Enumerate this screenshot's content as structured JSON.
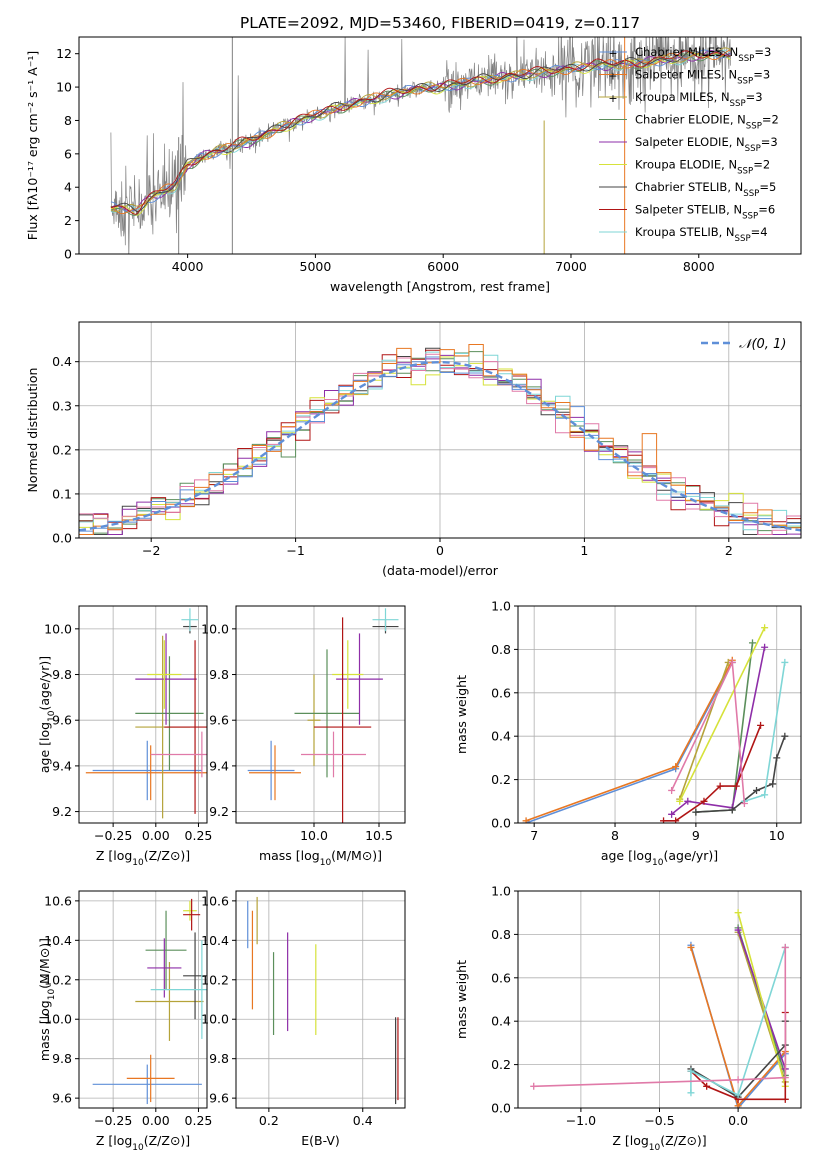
{
  "figure_title": "PLATE=2092, MJD=53460, FIBERID=0419, z=0.117",
  "colors": [
    "#5f8fd8",
    "#e87722",
    "#b5a33a",
    "#5b8f5b",
    "#8e2ea8",
    "#d6e23a",
    "#444444",
    "#b01515",
    "#7fd6d6",
    "#e07aa8"
  ],
  "chart_data": [
    {
      "id": "spectrum",
      "type": "line",
      "xlabel": "wavelength [Angstrom, rest frame]",
      "ylabel": "Flux [fλ10⁻¹⁷ erg cm⁻² s⁻¹ A⁻¹]",
      "xlim": [
        3150,
        8800
      ],
      "ylim": [
        0,
        13
      ],
      "xticks": [
        "4000",
        "5000",
        "6000",
        "7000",
        "8000"
      ],
      "yticks": [
        "0",
        "2",
        "4",
        "6",
        "8",
        "10",
        "12"
      ],
      "legend_position": "right",
      "grid": false,
      "legend": [
        "Chabrier MILES, NSSP=3",
        "Salpeter MILES, NSSP=3",
        "Kroupa MILES, NSSP=3",
        "Chabrier ELODIE, NSSP=2",
        "Salpeter ELODIE, NSSP=3",
        "Kroupa ELODIE, NSSP=2",
        "Chabrier STELIB, NSSP=5",
        "Salpeter STELIB, NSSP=6",
        "Kroupa STELIB, NSSP=4"
      ],
      "legend_parts": [
        {
          "pre": "Chabrier MILES, N",
          "sub": "SSP",
          "post": "=3"
        },
        {
          "pre": "Salpeter MILES, N",
          "sub": "SSP",
          "post": "=3"
        },
        {
          "pre": "Kroupa MILES, N",
          "sub": "SSP",
          "post": "=3"
        },
        {
          "pre": "Chabrier ELODIE, N",
          "sub": "SSP",
          "post": "=2"
        },
        {
          "pre": "Salpeter ELODIE, N",
          "sub": "SSP",
          "post": "=3"
        },
        {
          "pre": "Kroupa ELODIE, N",
          "sub": "SSP",
          "post": "=2"
        },
        {
          "pre": "Chabrier STELIB, N",
          "sub": "SSP",
          "post": "=5"
        },
        {
          "pre": "Salpeter STELIB, N",
          "sub": "SSP",
          "post": "=6"
        },
        {
          "pre": "Kroupa STELIB, N",
          "sub": "SSP",
          "post": "=4"
        }
      ],
      "continuum": {
        "x": [
          3400,
          3600,
          3700,
          3800,
          3900,
          4000,
          4100,
          4300,
          4500,
          4800,
          5000,
          5200,
          5500,
          5800,
          6000,
          6300,
          6600,
          6900,
          7200,
          7500,
          7800,
          8000,
          8250
        ],
        "y": [
          2.8,
          2.6,
          3.3,
          3.7,
          4.1,
          5.3,
          5.8,
          6.3,
          6.8,
          7.8,
          8.3,
          8.8,
          9.4,
          9.9,
          10.0,
          10.4,
          10.7,
          11.0,
          11.3,
          11.4,
          11.7,
          11.9,
          12.0
        ]
      }
    },
    {
      "id": "residuals",
      "type": "step",
      "xlabel": "(data-model)/error",
      "ylabel": "Normed distribution",
      "xlim": [
        -2.5,
        2.5
      ],
      "ylim": [
        0,
        0.49
      ],
      "xticks": [
        "−2",
        "−1",
        "0",
        "1",
        "2"
      ],
      "yticks": [
        "0.0",
        "0.1",
        "0.2",
        "0.3",
        "0.4"
      ],
      "legend": [
        "𝒩(0, 1)"
      ],
      "legend_position": "top-right",
      "grid": true,
      "bins": {
        "start": -2.5,
        "width": 0.1
      }
    },
    {
      "id": "z-age",
      "type": "errorbar",
      "xlabel": "Z [log10(Z/Z⊙)]",
      "ylabel": "age [log10(age/yr)]",
      "xlim": [
        -0.45,
        0.3
      ],
      "ylim": [
        9.15,
        10.1
      ],
      "xticks": [
        "−0.25",
        "0.00",
        "0.25"
      ],
      "yticks": [
        "9.2",
        "9.4",
        "9.6",
        "9.8",
        "10.0"
      ],
      "grid": true,
      "points": [
        {
          "x": -0.05,
          "xerr": 0.32,
          "y": 9.38,
          "yerr": 0.13
        },
        {
          "x": -0.03,
          "xerr": 0.38,
          "y": 9.37,
          "yerr": 0.12
        },
        {
          "x": 0.04,
          "xerr": 0.16,
          "y": 9.57,
          "yerr": 0.4
        },
        {
          "x": 0.08,
          "xerr": 0.2,
          "y": 9.63,
          "yerr": 0.25
        },
        {
          "x": 0.06,
          "xerr": 0.18,
          "y": 9.78,
          "yerr": 0.2
        },
        {
          "x": 0.05,
          "xerr": 0.1,
          "y": 9.8,
          "yerr": 0.15
        },
        {
          "x": 0.2,
          "xerr": 0.04,
          "y": 10.01,
          "yerr": 0.03
        },
        {
          "x": 0.23,
          "xerr": 0.18,
          "y": 9.57,
          "yerr": 0.38
        },
        {
          "x": 0.2,
          "xerr": 0.05,
          "y": 10.04,
          "yerr": 0.05
        },
        {
          "x": 0.27,
          "xerr": 0.3,
          "y": 9.45,
          "yerr": 0.1
        }
      ]
    },
    {
      "id": "mass-age",
      "type": "errorbar",
      "xlabel": "mass [log10(M/M⊙)]",
      "ylabel": "",
      "xlim": [
        9.4,
        10.7
      ],
      "ylim": [
        9.15,
        10.1
      ],
      "xticks": [
        "10.0",
        "10.5"
      ],
      "yticks": [
        "9.2",
        "9.4",
        "9.6",
        "9.8",
        "10.0"
      ],
      "grid": true,
      "points": [
        {
          "x": 9.67,
          "xerr": 0.18,
          "y": 9.38,
          "yerr": 0.13
        },
        {
          "x": 9.7,
          "xerr": 0.2,
          "y": 9.37,
          "yerr": 0.12
        },
        {
          "x": 10.0,
          "xerr": 0.05,
          "y": 9.6,
          "yerr": 0.2
        },
        {
          "x": 10.1,
          "xerr": 0.25,
          "y": 9.63,
          "yerr": 0.28
        },
        {
          "x": 10.35,
          "xerr": 0.18,
          "y": 9.78,
          "yerr": 0.2
        },
        {
          "x": 10.26,
          "xerr": 0.12,
          "y": 9.8,
          "yerr": 0.15
        },
        {
          "x": 10.55,
          "xerr": 0.1,
          "y": 10.01,
          "yerr": 0.03
        },
        {
          "x": 10.22,
          "xerr": 0.22,
          "y": 9.57,
          "yerr": 0.48
        },
        {
          "x": 10.55,
          "xerr": 0.1,
          "y": 10.04,
          "yerr": 0.05
        },
        {
          "x": 10.15,
          "xerr": 0.25,
          "y": 9.45,
          "yerr": 0.1
        }
      ]
    },
    {
      "id": "age-massweight",
      "type": "line",
      "xlabel": "age [log10(age/yr)]",
      "ylabel": "mass weight",
      "xlim": [
        6.8,
        10.3
      ],
      "ylim": [
        0,
        1.0
      ],
      "xticks": [
        "7",
        "8",
        "9",
        "10"
      ],
      "yticks": [
        "0.0",
        "0.2",
        "0.4",
        "0.6",
        "0.8",
        "1.0"
      ],
      "grid": true,
      "series": [
        {
          "x": [
            6.9,
            8.75,
            9.45
          ],
          "y": [
            0.0,
            0.25,
            0.74
          ]
        },
        {
          "x": [
            6.9,
            8.75,
            9.45
          ],
          "y": [
            0.01,
            0.26,
            0.75
          ]
        },
        {
          "x": [
            8.8,
            9.4
          ],
          "y": [
            0.11,
            0.74
          ]
        },
        {
          "x": [
            9.0,
            9.45,
            9.7
          ],
          "y": [
            0.05,
            0.06,
            0.83
          ]
        },
        {
          "x": [
            8.7,
            8.9,
            9.45,
            9.85
          ],
          "y": [
            0.04,
            0.1,
            0.07,
            0.81
          ]
        },
        {
          "x": [
            8.8,
            9.85
          ],
          "y": [
            0.1,
            0.9
          ]
        },
        {
          "x": [
            9.0,
            9.45,
            9.75,
            9.95,
            10.0,
            10.1
          ],
          "y": [
            0.05,
            0.06,
            0.15,
            0.18,
            0.3,
            0.4
          ]
        },
        {
          "x": [
            8.6,
            8.75,
            9.1,
            9.3,
            9.5,
            9.8
          ],
          "y": [
            0.01,
            0.01,
            0.1,
            0.17,
            0.17,
            0.45
          ]
        },
        {
          "x": [
            9.6,
            9.85,
            10.1
          ],
          "y": [
            0.1,
            0.13,
            0.74
          ]
        },
        {
          "x": [
            8.7,
            9.45,
            9.6
          ],
          "y": [
            0.15,
            0.74,
            0.09
          ]
        }
      ]
    },
    {
      "id": "z-mass",
      "type": "errorbar",
      "xlabel": "Z [log10(Z/Z⊙)]",
      "ylabel": "mass [log10(M/M⊙)]",
      "xlim": [
        -0.45,
        0.3
      ],
      "ylim": [
        9.55,
        10.65
      ],
      "xticks": [
        "−0.25",
        "0.00",
        "0.25"
      ],
      "yticks": [
        "9.6",
        "9.8",
        "10.0",
        "10.2",
        "10.4",
        "10.6"
      ],
      "grid": true,
      "points": [
        {
          "x": -0.05,
          "xerr": 0.32,
          "y": 9.67,
          "yerr": 0.1
        },
        {
          "x": -0.03,
          "xerr": 0.14,
          "y": 9.7,
          "yerr": 0.12
        },
        {
          "x": 0.08,
          "xerr": 0.2,
          "y": 10.09,
          "yerr": 0.2
        },
        {
          "x": 0.06,
          "xerr": 0.12,
          "y": 10.35,
          "yerr": 0.2
        },
        {
          "x": 0.05,
          "xerr": 0.1,
          "y": 10.26,
          "yerr": 0.15
        },
        {
          "x": 0.2,
          "xerr": 0.04,
          "y": 10.55,
          "yerr": 0.05
        },
        {
          "x": 0.23,
          "xerr": 0.07,
          "y": 10.22,
          "yerr": 0.22
        },
        {
          "x": 0.21,
          "xerr": 0.05,
          "y": 10.53,
          "yerr": 0.08
        },
        {
          "x": 0.27,
          "xerr": 0.3,
          "y": 10.15,
          "yerr": 0.25
        }
      ]
    },
    {
      "id": "ebv-mass",
      "type": "errorbar",
      "xlabel": "E(B-V)",
      "ylabel": "",
      "xlim": [
        0.13,
        0.49
      ],
      "ylim": [
        9.55,
        10.65
      ],
      "xticks": [
        "0.2",
        "0.4"
      ],
      "yticks": [
        "9.6",
        "9.8",
        "10.0",
        "10.2",
        "10.4",
        "10.6"
      ],
      "grid": true,
      "points": [
        {
          "x": 0.155,
          "y": 10.48,
          "yerr": 0.12
        },
        {
          "x": 0.165,
          "y": 10.3,
          "yerr": 0.25
        },
        {
          "x": 0.175,
          "y": 10.5,
          "yerr": 0.12
        },
        {
          "x": 0.21,
          "y": 10.13,
          "yerr": 0.21
        },
        {
          "x": 0.24,
          "y": 10.19,
          "yerr": 0.25
        },
        {
          "x": 0.3,
          "y": 10.15,
          "yerr": 0.23
        },
        {
          "x": 0.47,
          "y": 9.79,
          "yerr": 0.22
        },
        {
          "x": 0.475,
          "y": 9.8,
          "yerr": 0.21
        }
      ]
    },
    {
      "id": "z-massweight",
      "type": "line",
      "xlabel": "Z [log10(Z/Z⊙)]",
      "ylabel": "mass weight",
      "xlim": [
        -1.4,
        0.4
      ],
      "ylim": [
        0,
        1.0
      ],
      "xticks": [
        "−1.0",
        "−0.5",
        "0.0"
      ],
      "yticks": [
        "0.0",
        "0.2",
        "0.4",
        "0.6",
        "0.8",
        "1.0"
      ],
      "grid": true,
      "series": [
        {
          "x": [
            -0.3,
            0.0,
            0.3
          ],
          "y": [
            0.75,
            0.0,
            0.25
          ]
        },
        {
          "x": [
            -0.3,
            0.0,
            0.3
          ],
          "y": [
            0.74,
            0.01,
            0.26
          ]
        },
        {
          "x": [
            0.0,
            0.3
          ],
          "y": [
            0.81,
            0.12
          ]
        },
        {
          "x": [
            0.0,
            0.3
          ],
          "y": [
            0.83,
            0.15
          ]
        },
        {
          "x": [
            0.0,
            0.3
          ],
          "y": [
            0.82,
            0.18
          ]
        },
        {
          "x": [
            0.0,
            0.3
          ],
          "y": [
            0.9,
            0.1
          ]
        },
        {
          "x": [
            -0.3,
            0.0,
            0.3,
            0.3
          ],
          "y": [
            0.18,
            0.05,
            0.29,
            0.4
          ]
        },
        {
          "x": [
            -0.3,
            -0.2,
            0.0,
            0.3,
            0.3
          ],
          "y": [
            0.17,
            0.1,
            0.04,
            0.04,
            0.44
          ]
        },
        {
          "x": [
            -0.3,
            -0.3,
            0.0,
            0.3
          ],
          "y": [
            0.07,
            0.17,
            0.06,
            0.74
          ]
        },
        {
          "x": [
            -1.3,
            0.0,
            0.3,
            0.3
          ],
          "y": [
            0.1,
            0.13,
            0.14,
            0.74
          ]
        }
      ]
    }
  ]
}
